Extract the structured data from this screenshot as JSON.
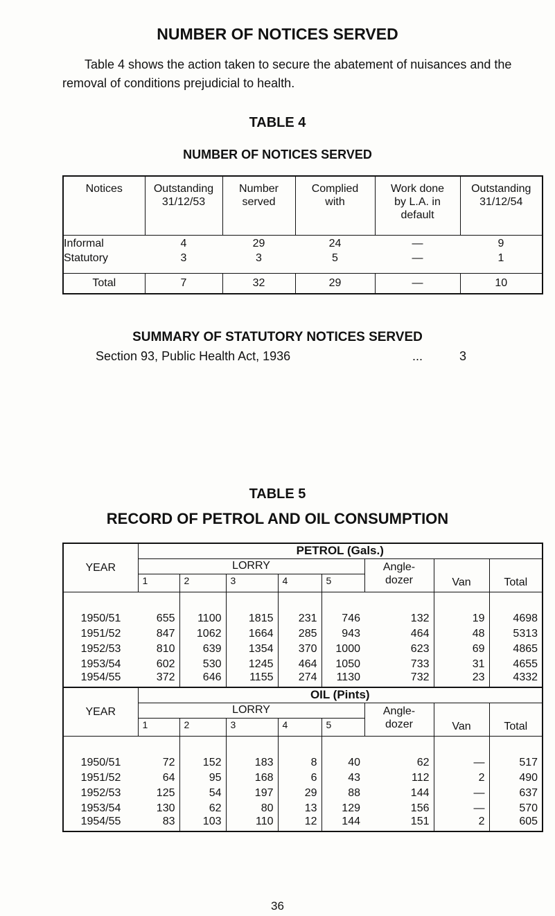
{
  "title": "NUMBER OF NOTICES SERVED",
  "intro": "Table 4 shows the action taken to secure the abatement of nuisances and the removal of conditions prejudicial to health.",
  "table4": {
    "title": "TABLE 4",
    "subtitle": "NUMBER OF NOTICES SERVED",
    "header": [
      "Notices",
      "Outstanding\n31/12/53",
      "Number\nserved",
      "Complied\nwith",
      "Work done\nby L.A. in\ndefault",
      "Outstanding\n31/12/54"
    ],
    "rows": [
      [
        "Informal",
        4,
        29,
        24,
        "—",
        9
      ],
      [
        "Statutory",
        3,
        3,
        5,
        "—",
        1
      ]
    ],
    "total": [
      "Total",
      7,
      32,
      29,
      "—",
      10
    ]
  },
  "summary": {
    "title": "SUMMARY OF STATUTORY NOTICES SERVED",
    "item": "Section 93, Public Health Act, 1936",
    "leader": "...",
    "value": 3
  },
  "table5": {
    "title": "TABLE 5",
    "subtitle": "RECORD OF PETROL AND OIL CONSUMPTION",
    "sections": [
      {
        "year_label": "YEAR",
        "heading": "PETROL (Gals.)",
        "group": "LORRY",
        "lorry_columns": [
          1,
          2,
          3,
          4,
          5
        ],
        "columns": [
          "Angle-\ndozer",
          "Van",
          "Total"
        ],
        "rows": [
          [
            "1950/51",
            655,
            1100,
            1815,
            231,
            746,
            132,
            19,
            4698
          ],
          [
            "1951/52",
            847,
            1062,
            1664,
            285,
            943,
            464,
            48,
            5313
          ],
          [
            "1952/53",
            810,
            639,
            1354,
            370,
            1000,
            623,
            69,
            4865
          ],
          [
            "1953/54",
            602,
            530,
            1245,
            464,
            1050,
            733,
            31,
            4655
          ],
          [
            "1954/55",
            372,
            646,
            1155,
            274,
            1130,
            732,
            23,
            4332
          ]
        ]
      },
      {
        "year_label": "YEAR",
        "heading": "OIL (Pints)",
        "group": "LORRY",
        "lorry_columns": [
          1,
          2,
          3,
          4,
          5
        ],
        "columns": [
          "Angle-\ndozer",
          "Van",
          "Total"
        ],
        "rows": [
          [
            "1950/51",
            72,
            152,
            183,
            8,
            40,
            62,
            "—",
            517
          ],
          [
            "1951/52",
            64,
            95,
            168,
            6,
            43,
            112,
            2,
            490
          ],
          [
            "1952/53",
            125,
            54,
            197,
            29,
            88,
            144,
            "—",
            637
          ],
          [
            "1953/54",
            130,
            62,
            80,
            13,
            129,
            156,
            "—",
            570
          ],
          [
            "1954/55",
            83,
            103,
            110,
            12,
            144,
            151,
            2,
            605
          ]
        ]
      }
    ]
  },
  "page_number": 36
}
